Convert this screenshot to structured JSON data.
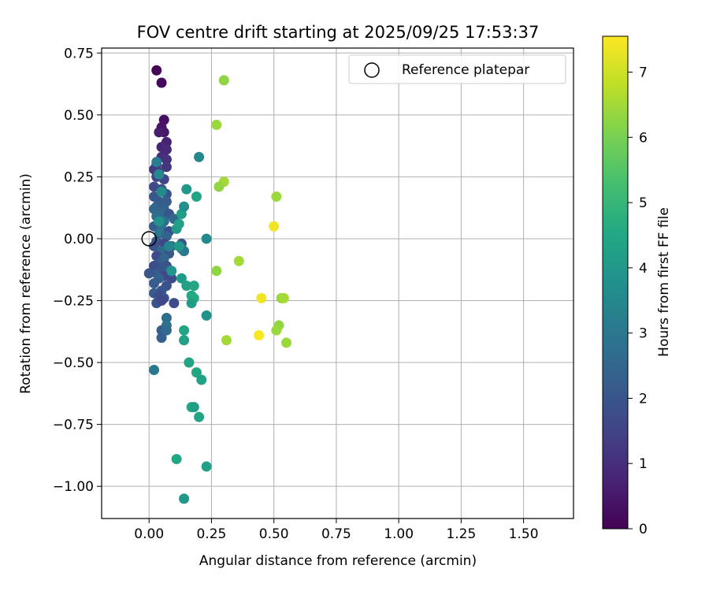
{
  "chart_data": {
    "type": "scatter",
    "title": "FOV centre drift starting at 2025/09/25 17:53:37",
    "xlabel": "Angular distance from reference (arcmin)",
    "ylabel": "Rotation from reference (arcmin)",
    "xlim": [
      -0.19,
      1.7
    ],
    "ylim": [
      -1.13,
      0.77
    ],
    "xticks": [
      0.0,
      0.25,
      0.5,
      0.75,
      1.0,
      1.25,
      1.5
    ],
    "xtick_labels": [
      "0.00",
      "0.25",
      "0.50",
      "0.75",
      "1.00",
      "1.25",
      "1.50"
    ],
    "yticks": [
      -1.0,
      -0.75,
      -0.5,
      -0.25,
      0.0,
      0.25,
      0.5,
      0.75
    ],
    "ytick_labels": [
      "−1.00",
      "−0.75",
      "−0.50",
      "−0.25",
      "0.00",
      "0.25",
      "0.50",
      "0.75"
    ],
    "grid": true,
    "legend": {
      "location": "top-right",
      "label": "Reference platepar"
    },
    "reference_point": {
      "x": 0.0,
      "y": 0.0
    },
    "colorbar": {
      "label": "Hours from first FF file",
      "range": [
        0,
        7.55
      ],
      "ticks": [
        0,
        1,
        2,
        3,
        4,
        5,
        6,
        7
      ],
      "tick_labels": [
        "0",
        "1",
        "2",
        "3",
        "4",
        "5",
        "6",
        "7"
      ],
      "colormap": "viridis"
    },
    "points": [
      {
        "x": 0.03,
        "y": 0.68,
        "t": 0.1
      },
      {
        "x": 0.05,
        "y": 0.63,
        "t": 0.2
      },
      {
        "x": 0.06,
        "y": 0.48,
        "t": 0.3
      },
      {
        "x": 0.05,
        "y": 0.45,
        "t": 0.4
      },
      {
        "x": 0.06,
        "y": 0.43,
        "t": 0.5
      },
      {
        "x": 0.04,
        "y": 0.43,
        "t": 0.6
      },
      {
        "x": 0.07,
        "y": 0.39,
        "t": 0.7
      },
      {
        "x": 0.05,
        "y": 0.37,
        "t": 0.8
      },
      {
        "x": 0.07,
        "y": 0.36,
        "t": 0.9
      },
      {
        "x": 0.05,
        "y": 0.33,
        "t": 1.0
      },
      {
        "x": 0.07,
        "y": 0.32,
        "t": 1.1
      },
      {
        "x": 0.03,
        "y": 0.3,
        "t": 1.2
      },
      {
        "x": 0.02,
        "y": 0.28,
        "t": 1.3
      },
      {
        "x": 0.07,
        "y": 0.29,
        "t": 1.2
      },
      {
        "x": 0.04,
        "y": 0.27,
        "t": 1.4
      },
      {
        "x": 0.03,
        "y": 0.25,
        "t": 1.5
      },
      {
        "x": 0.06,
        "y": 0.24,
        "t": 1.6
      },
      {
        "x": 0.02,
        "y": 0.21,
        "t": 1.7
      },
      {
        "x": 0.05,
        "y": 0.2,
        "t": 1.8
      },
      {
        "x": 0.07,
        "y": 0.18,
        "t": 1.9
      },
      {
        "x": 0.02,
        "y": 0.17,
        "t": 2.0
      },
      {
        "x": 0.04,
        "y": 0.15,
        "t": 2.1
      },
      {
        "x": 0.07,
        "y": 0.15,
        "t": 2.2
      },
      {
        "x": 0.03,
        "y": 0.13,
        "t": 2.3
      },
      {
        "x": 0.06,
        "y": 0.12,
        "t": 2.4
      },
      {
        "x": 0.02,
        "y": 0.12,
        "t": 2.5
      },
      {
        "x": 0.05,
        "y": 0.1,
        "t": 2.6
      },
      {
        "x": 0.08,
        "y": 0.1,
        "t": 2.0
      },
      {
        "x": 0.03,
        "y": 0.09,
        "t": 2.7
      },
      {
        "x": 0.06,
        "y": 0.07,
        "t": 2.8
      },
      {
        "x": 0.1,
        "y": 0.08,
        "t": 2.5
      },
      {
        "x": 0.02,
        "y": 0.05,
        "t": 2.2
      },
      {
        "x": 0.05,
        "y": 0.04,
        "t": 2.9
      },
      {
        "x": 0.08,
        "y": 0.03,
        "t": 1.8
      },
      {
        "x": 0.04,
        "y": 0.02,
        "t": 3.0
      },
      {
        "x": 0.07,
        "y": 0.01,
        "t": 2.4
      },
      {
        "x": 0.03,
        "y": -0.01,
        "t": 2.1
      },
      {
        "x": 0.06,
        "y": -0.02,
        "t": 1.6
      },
      {
        "x": 0.09,
        "y": -0.03,
        "t": 2.3
      },
      {
        "x": 0.02,
        "y": -0.03,
        "t": 1.9
      },
      {
        "x": 0.05,
        "y": -0.05,
        "t": 2.6
      },
      {
        "x": 0.08,
        "y": -0.06,
        "t": 2.0
      },
      {
        "x": 0.03,
        "y": -0.07,
        "t": 1.7
      },
      {
        "x": 0.06,
        "y": -0.08,
        "t": 2.5
      },
      {
        "x": 0.04,
        "y": -0.1,
        "t": 2.2
      },
      {
        "x": 0.07,
        "y": -0.11,
        "t": 1.9
      },
      {
        "x": 0.02,
        "y": -0.11,
        "t": 1.8
      },
      {
        "x": 0.05,
        "y": -0.12,
        "t": 2.0
      },
      {
        "x": 0.08,
        "y": -0.13,
        "t": 2.4
      },
      {
        "x": 0.03,
        "y": -0.14,
        "t": 2.1
      },
      {
        "x": 0.0,
        "y": -0.14,
        "t": 2.0
      },
      {
        "x": 0.06,
        "y": -0.15,
        "t": 1.6
      },
      {
        "x": 0.04,
        "y": -0.16,
        "t": 2.3
      },
      {
        "x": 0.09,
        "y": -0.16,
        "t": 1.7
      },
      {
        "x": 0.02,
        "y": -0.18,
        "t": 2.2
      },
      {
        "x": 0.07,
        "y": -0.19,
        "t": 1.9
      },
      {
        "x": 0.05,
        "y": -0.21,
        "t": 2.0
      },
      {
        "x": 0.02,
        "y": -0.22,
        "t": 2.1
      },
      {
        "x": 0.04,
        "y": -0.23,
        "t": 1.8
      },
      {
        "x": 0.06,
        "y": -0.24,
        "t": 1.9
      },
      {
        "x": 0.03,
        "y": -0.26,
        "t": 2.0
      },
      {
        "x": 0.1,
        "y": -0.26,
        "t": 1.7
      },
      {
        "x": 0.05,
        "y": -0.25,
        "t": 1.6
      },
      {
        "x": 0.07,
        "y": -0.32,
        "t": 2.7
      },
      {
        "x": 0.05,
        "y": -0.37,
        "t": 2.2
      },
      {
        "x": 0.07,
        "y": -0.35,
        "t": 2.8
      },
      {
        "x": 0.07,
        "y": -0.37,
        "t": 2.6
      },
      {
        "x": 0.05,
        "y": -0.4,
        "t": 2.3
      },
      {
        "x": 0.02,
        "y": -0.53,
        "t": 3.0
      },
      {
        "x": 0.13,
        "y": -0.02,
        "t": 1.9
      },
      {
        "x": 0.13,
        "y": -0.04,
        "t": 3.3
      },
      {
        "x": 0.14,
        "y": -0.05,
        "t": 3.0
      },
      {
        "x": 0.12,
        "y": -0.03,
        "t": 4.0
      },
      {
        "x": 0.03,
        "y": 0.31,
        "t": 3.2
      },
      {
        "x": 0.04,
        "y": 0.26,
        "t": 3.5
      },
      {
        "x": 0.05,
        "y": 0.19,
        "t": 3.6
      },
      {
        "x": 0.04,
        "y": 0.07,
        "t": 3.8
      },
      {
        "x": 0.08,
        "y": -0.03,
        "t": 3.4
      },
      {
        "x": 0.09,
        "y": -0.13,
        "t": 3.9
      },
      {
        "x": 0.11,
        "y": 0.04,
        "t": 4.1
      },
      {
        "x": 0.12,
        "y": 0.06,
        "t": 4.3
      },
      {
        "x": 0.13,
        "y": 0.1,
        "t": 4.2
      },
      {
        "x": 0.14,
        "y": 0.13,
        "t": 3.7
      },
      {
        "x": 0.15,
        "y": 0.2,
        "t": 4.0
      },
      {
        "x": 0.2,
        "y": 0.33,
        "t": 3.5
      },
      {
        "x": 0.19,
        "y": 0.17,
        "t": 4.4
      },
      {
        "x": 0.23,
        "y": 0.0,
        "t": 3.6
      },
      {
        "x": 0.13,
        "y": -0.16,
        "t": 4.1
      },
      {
        "x": 0.15,
        "y": -0.19,
        "t": 4.3
      },
      {
        "x": 0.18,
        "y": -0.19,
        "t": 4.4
      },
      {
        "x": 0.17,
        "y": -0.23,
        "t": 4.5
      },
      {
        "x": 0.18,
        "y": -0.24,
        "t": 4.6
      },
      {
        "x": 0.17,
        "y": -0.26,
        "t": 4.2
      },
      {
        "x": 0.23,
        "y": -0.31,
        "t": 3.8
      },
      {
        "x": 0.14,
        "y": -0.37,
        "t": 4.4
      },
      {
        "x": 0.14,
        "y": -0.41,
        "t": 4.3
      },
      {
        "x": 0.16,
        "y": -0.5,
        "t": 4.4
      },
      {
        "x": 0.19,
        "y": -0.54,
        "t": 4.5
      },
      {
        "x": 0.21,
        "y": -0.57,
        "t": 4.3
      },
      {
        "x": 0.17,
        "y": -0.68,
        "t": 4.6
      },
      {
        "x": 0.18,
        "y": -0.68,
        "t": 4.2
      },
      {
        "x": 0.2,
        "y": -0.72,
        "t": 4.4
      },
      {
        "x": 0.11,
        "y": -0.89,
        "t": 4.5
      },
      {
        "x": 0.23,
        "y": -0.92,
        "t": 4.3
      },
      {
        "x": 0.14,
        "y": -1.05,
        "t": 4.0
      },
      {
        "x": 0.3,
        "y": 0.64,
        "t": 6.3
      },
      {
        "x": 0.27,
        "y": 0.46,
        "t": 6.4
      },
      {
        "x": 0.3,
        "y": 0.23,
        "t": 6.5
      },
      {
        "x": 0.28,
        "y": 0.21,
        "t": 6.3
      },
      {
        "x": 0.51,
        "y": 0.17,
        "t": 6.4
      },
      {
        "x": 0.5,
        "y": 0.05,
        "t": 7.4
      },
      {
        "x": 0.36,
        "y": -0.09,
        "t": 6.5
      },
      {
        "x": 0.27,
        "y": -0.13,
        "t": 6.3
      },
      {
        "x": 0.45,
        "y": -0.24,
        "t": 7.4
      },
      {
        "x": 0.53,
        "y": -0.24,
        "t": 6.4
      },
      {
        "x": 0.54,
        "y": -0.24,
        "t": 6.5
      },
      {
        "x": 0.52,
        "y": -0.35,
        "t": 6.3
      },
      {
        "x": 0.51,
        "y": -0.37,
        "t": 6.4
      },
      {
        "x": 0.44,
        "y": -0.39,
        "t": 7.5
      },
      {
        "x": 0.55,
        "y": -0.42,
        "t": 6.4
      },
      {
        "x": 0.31,
        "y": -0.41,
        "t": 6.5
      }
    ]
  }
}
